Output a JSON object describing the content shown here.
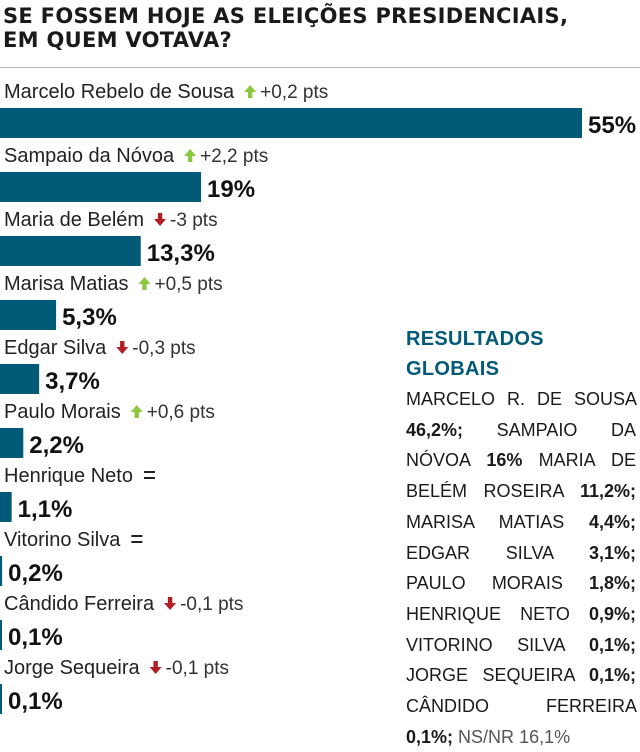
{
  "title": {
    "line1": "SE FOSSEM HOJE AS ELEIÇÕES PRESIDENCIAIS,",
    "line2": "EM QUEM VOTAVA?"
  },
  "chart_data": {
    "type": "bar",
    "orientation": "horizontal",
    "xlim": [
      0,
      55
    ],
    "categories": [
      "Marcelo Rebelo de Sousa",
      "Sampaio da Nóvoa",
      "Maria de Belém",
      "Marisa Matias",
      "Edgar Silva",
      "Paulo Morais",
      "Henrique Neto",
      "Vitorino Silva",
      "Cândido Ferreira",
      "Jorge Sequeira"
    ],
    "values": [
      55,
      19,
      13.3,
      5.3,
      3.7,
      2.2,
      1.1,
      0.2,
      0.1,
      0.1
    ],
    "value_labels": [
      "55%",
      "19%",
      "13,3%",
      "5,3%",
      "3,7%",
      "2,2%",
      "1,1%",
      "0,2%",
      "0,1%",
      "0,1%"
    ],
    "changes": [
      {
        "direction": "up",
        "text": "+0,2 pts"
      },
      {
        "direction": "up",
        "text": "+2,2 pts"
      },
      {
        "direction": "down",
        "text": "-3 pts"
      },
      {
        "direction": "up",
        "text": "+0,5 pts"
      },
      {
        "direction": "down",
        "text": "-0,3 pts"
      },
      {
        "direction": "up",
        "text": "+0,6 pts"
      },
      {
        "direction": "same",
        "text": ""
      },
      {
        "direction": "same",
        "text": ""
      },
      {
        "direction": "down",
        "text": "-0,1 pts"
      },
      {
        "direction": "down",
        "text": "-0,1 pts"
      }
    ],
    "colors": {
      "bar": "#005a78",
      "up": "#8cc63f",
      "down": "#b11f24"
    }
  },
  "results_panel": {
    "title": "RESULTADOS GLOBAIS",
    "items": [
      {
        "name": "MARCELO R. DE SOUSA",
        "value": "46,2%;"
      },
      {
        "name": "SAMPAIO DA NÓVOA",
        "value": "16%"
      },
      {
        "name": "MARIA DE BELÉM ROSEIRA",
        "value": "11,2%;"
      },
      {
        "name": "MARISA MATIAS",
        "value": "4,4%;"
      },
      {
        "name": "EDGAR SILVA",
        "value": "3,1%;"
      },
      {
        "name": "PAULO MORAIS",
        "value": "1,8%;"
      },
      {
        "name": "HENRIQUE NETO",
        "value": "0,9%;"
      },
      {
        "name": "VITORINO SILVA",
        "value": "0,1%;"
      },
      {
        "name": "JORGE SEQUEIRA",
        "value": "0,1%;"
      },
      {
        "name": "CÂNDIDO FERREIRA",
        "value": "0,1%;"
      }
    ],
    "nsnr_label": "NS/NR",
    "nsnr_value": "16,1%"
  }
}
